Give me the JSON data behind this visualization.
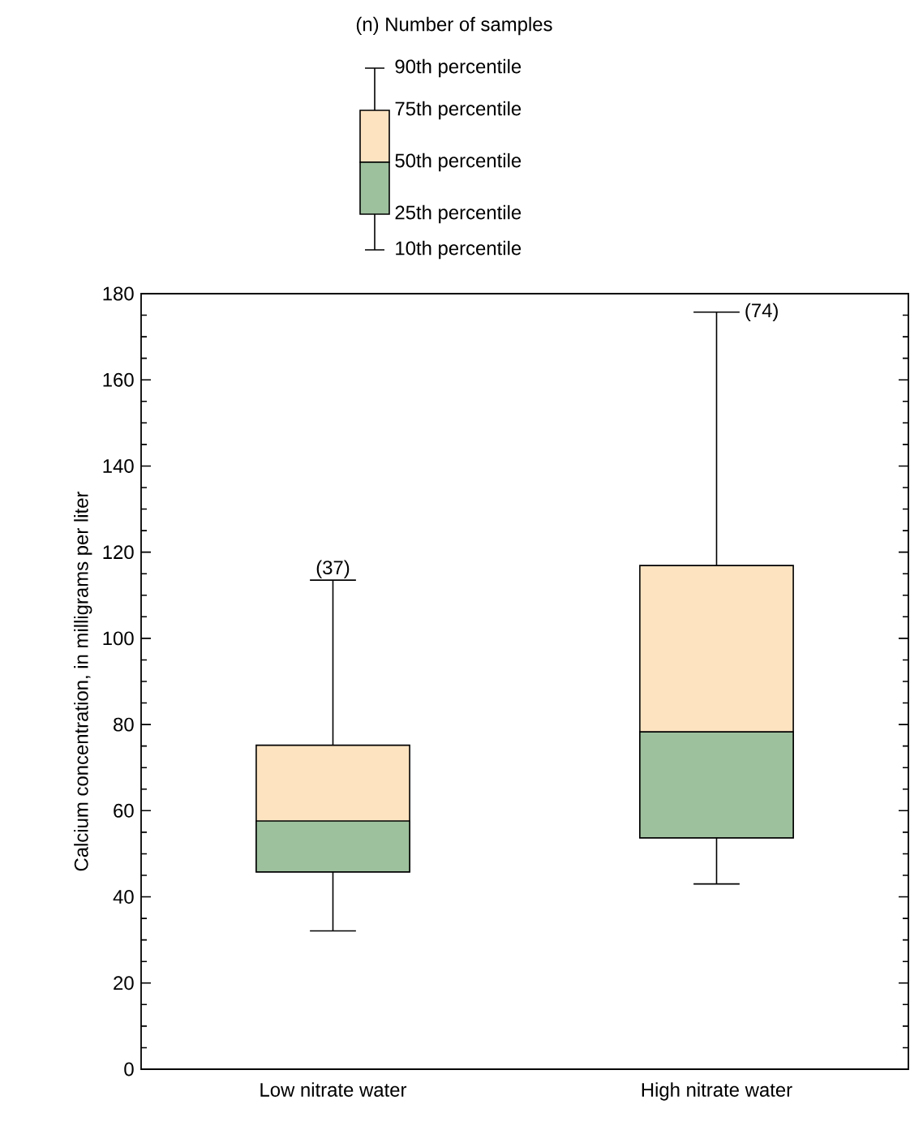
{
  "chart_data": {
    "type": "box",
    "ylabel": "Calcium concentration, in milligrams per liter",
    "categories": [
      "Low nitrate water",
      "High nitrate water"
    ],
    "boxes": [
      {
        "low": 32.1,
        "q1": 45.8,
        "median": 57.6,
        "q3": 75.2,
        "high": 113.5
      },
      {
        "low": 43.0,
        "q1": 53.7,
        "median": 78.3,
        "q3": 116.9,
        "high": 175.7
      }
    ],
    "colors": [
      "#fde3c0",
      "#9dc09d"
    ],
    "ylim": [
      0,
      180
    ],
    "yticks": [
      0,
      20,
      40,
      60,
      80,
      100,
      120,
      140,
      160,
      180
    ],
    "annotations": [
      "(n) Number of samples",
      "90th percentile",
      "75th percentile",
      "50th percentile",
      "25th percentile",
      "10th percentile",
      {
        "text": "(37)",
        "x": "Low nitrate water",
        "y": 113.5
      },
      {
        "text": "(74)",
        "x": "High nitrate water",
        "y": 175.7
      }
    ]
  }
}
